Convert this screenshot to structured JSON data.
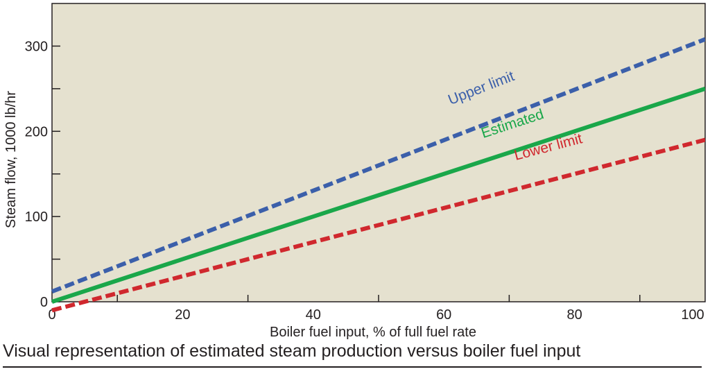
{
  "caption": "Visual representation of estimated steam production versus boiler fuel input",
  "chart_data": {
    "type": "line",
    "xlabel": "Boiler fuel input, % of full fuel rate",
    "ylabel": "Steam flow, 1000 lb/hr",
    "xlim": [
      0,
      100
    ],
    "ylim": [
      0,
      350
    ],
    "xticks": [
      0,
      20,
      40,
      60,
      80,
      100
    ],
    "yticks": [
      0,
      100,
      200,
      300
    ],
    "x_minor_step": 10,
    "y_minor_step": 50,
    "grid": false,
    "background_color": "#e5e1cf",
    "series": [
      {
        "name": "Upper limit",
        "x": [
          0,
          100
        ],
        "y": [
          12,
          308
        ],
        "color": "#3b5faa",
        "dash": "dashed"
      },
      {
        "name": "Estimated",
        "x": [
          0,
          100
        ],
        "y": [
          0,
          250
        ],
        "color": "#1aa74a",
        "dash": "solid"
      },
      {
        "name": "Lower limit",
        "x": [
          0,
          100
        ],
        "y": [
          -10,
          190
        ],
        "color": "#d0282e",
        "dash": "dashed"
      }
    ]
  }
}
